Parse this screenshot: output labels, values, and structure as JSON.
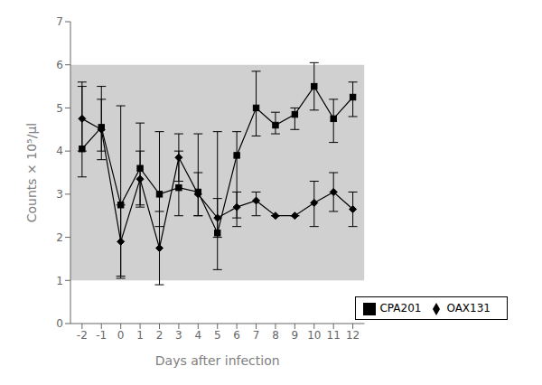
{
  "chart_data": {
    "type": "line",
    "xlabel": "Days after infection",
    "ylabel": "Counts × 10⁵/µl",
    "x": [
      -2,
      -1,
      0,
      1,
      2,
      3,
      4,
      5,
      6,
      7,
      8,
      9,
      10,
      11,
      12
    ],
    "series": [
      {
        "name": "OAX131",
        "color": "#000000",
        "marker": "diamond",
        "values": [
          4.75,
          4.5,
          1.9,
          3.35,
          1.75,
          3.85,
          3.0,
          2.45,
          2.7,
          2.85,
          2.5,
          2.5,
          2.8,
          3.05,
          2.65
        ],
        "err_lo": [
          0.75,
          0.7,
          0.85,
          0.65,
          0.85,
          0.55,
          0.5,
          0.45,
          0.45,
          0.35,
          0.0,
          0.0,
          0.55,
          0.45,
          0.4
        ],
        "err_hi": [
          0.85,
          0.7,
          0.85,
          0.65,
          0.85,
          0.55,
          0.5,
          0.45,
          0.35,
          0.2,
          0.0,
          0.0,
          0.5,
          0.45,
          0.4
        ]
      },
      {
        "name": "CPA201",
        "color": "#000000",
        "marker": "square",
        "values": [
          4.05,
          4.55,
          2.75,
          3.6,
          3.0,
          3.15,
          3.05,
          2.1,
          3.9,
          5.0,
          4.6,
          4.85,
          5.5,
          4.75,
          5.25
        ],
        "err_lo": [
          0.65,
          0.55,
          1.65,
          0.85,
          0.75,
          0.65,
          0.55,
          0.85,
          1.45,
          0.65,
          0.2,
          0.35,
          0.55,
          0.55,
          0.45
        ],
        "err_hi": [
          1.45,
          0.95,
          2.3,
          1.05,
          1.45,
          0.85,
          1.35,
          2.35,
          0.55,
          0.85,
          0.3,
          0.15,
          0.55,
          0.45,
          0.35
        ]
      }
    ],
    "xlim": [
      -2.6,
      12.6
    ],
    "ylim": [
      0,
      7
    ],
    "xticks": [
      -2,
      -1,
      0,
      1,
      2,
      3,
      4,
      5,
      6,
      7,
      8,
      9,
      10,
      11,
      12
    ],
    "yticks": [
      0,
      1,
      2,
      3,
      4,
      5,
      6,
      7
    ],
    "band": {
      "lo": 1.0,
      "hi": 6.0,
      "color": "#d0d0d0"
    },
    "legend": "lower right",
    "grid": false
  }
}
